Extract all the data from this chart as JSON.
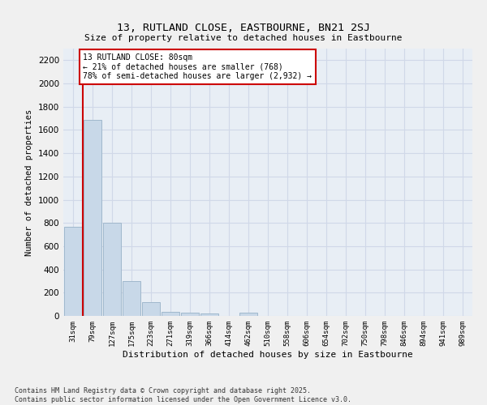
{
  "title": "13, RUTLAND CLOSE, EASTBOURNE, BN21 2SJ",
  "subtitle": "Size of property relative to detached houses in Eastbourne",
  "xlabel": "Distribution of detached houses by size in Eastbourne",
  "ylabel": "Number of detached properties",
  "categories": [
    "31sqm",
    "79sqm",
    "127sqm",
    "175sqm",
    "223sqm",
    "271sqm",
    "319sqm",
    "366sqm",
    "414sqm",
    "462sqm",
    "510sqm",
    "558sqm",
    "606sqm",
    "654sqm",
    "702sqm",
    "750sqm",
    "798sqm",
    "846sqm",
    "894sqm",
    "941sqm",
    "989sqm"
  ],
  "values": [
    770,
    1690,
    800,
    300,
    120,
    38,
    28,
    20,
    0,
    25,
    0,
    0,
    0,
    0,
    0,
    0,
    0,
    0,
    0,
    0,
    0
  ],
  "bar_color": "#c8d8e8",
  "bar_edgecolor": "#a0b8cc",
  "vline_x": 1.0,
  "vline_color": "#cc0000",
  "annotation_text": "13 RUTLAND CLOSE: 80sqm\n← 21% of detached houses are smaller (768)\n78% of semi-detached houses are larger (2,932) →",
  "annotation_box_color": "#ffffff",
  "annotation_box_edgecolor": "#cc0000",
  "ylim": [
    0,
    2300
  ],
  "yticks": [
    0,
    200,
    400,
    600,
    800,
    1000,
    1200,
    1400,
    1600,
    1800,
    2000,
    2200
  ],
  "grid_color": "#d0d8e8",
  "background_color": "#e8eef5",
  "fig_background": "#f0f0f0",
  "footer_line1": "Contains HM Land Registry data © Crown copyright and database right 2025.",
  "footer_line2": "Contains public sector information licensed under the Open Government Licence v3.0."
}
